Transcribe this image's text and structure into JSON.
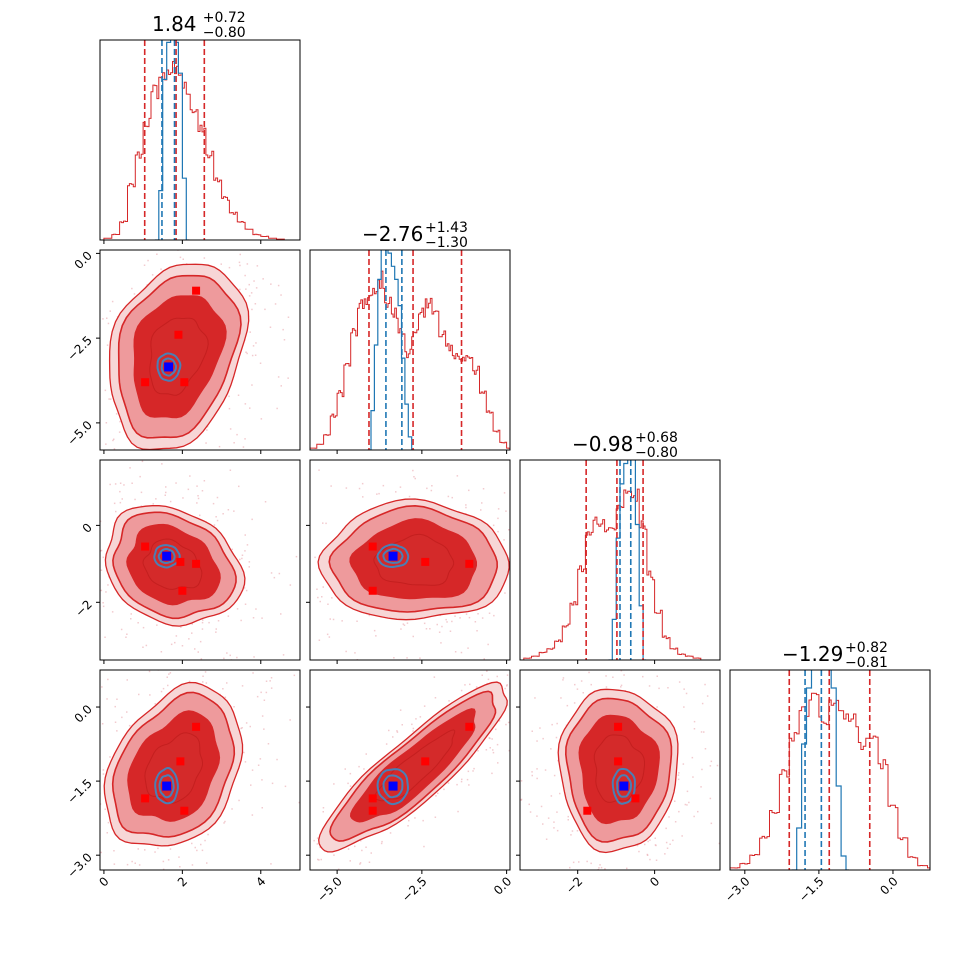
{
  "colors": {
    "red": "#d62728",
    "blue": "#1f77b4",
    "marker_red": "#ff0000",
    "marker_blue": "#0000ff",
    "contour_blue": "#4a7fb5"
  },
  "chart_data": {
    "type": "corner",
    "parameters": [
      {
        "range": [
          -0.1,
          5.0
        ],
        "ticks": [
          0,
          2,
          4
        ],
        "tick_labels": [
          "0",
          "2",
          "4"
        ],
        "title": {
          "median": "1.84",
          "upper": "+0.72",
          "lower": "−0.80"
        },
        "quantiles_red": [
          1.04,
          1.84,
          2.56
        ],
        "quantiles_blue": [
          1.48,
          1.8
        ],
        "hist_red": [
          [
            0.0,
            0.01
          ],
          [
            0.2,
            0.03
          ],
          [
            0.4,
            0.1
          ],
          [
            0.6,
            0.3
          ],
          [
            0.8,
            0.47
          ],
          [
            1.0,
            0.65
          ],
          [
            1.2,
            0.82
          ],
          [
            1.4,
            0.9
          ],
          [
            1.6,
            0.94
          ],
          [
            1.8,
            0.92
          ],
          [
            2.0,
            0.84
          ],
          [
            2.2,
            0.72
          ],
          [
            2.4,
            0.6
          ],
          [
            2.6,
            0.47
          ],
          [
            2.8,
            0.33
          ],
          [
            3.0,
            0.23
          ],
          [
            3.2,
            0.15
          ],
          [
            3.4,
            0.1
          ],
          [
            3.6,
            0.06
          ],
          [
            3.8,
            0.03
          ],
          [
            4.0,
            0.02
          ],
          [
            4.2,
            0.01
          ],
          [
            4.4,
            0.005
          ],
          [
            4.6,
            0.0
          ]
        ],
        "hist_blue": [
          [
            1.3,
            0.0
          ],
          [
            1.4,
            0.4
          ],
          [
            1.5,
            1.3
          ],
          [
            1.6,
            1.6
          ],
          [
            1.7,
            1.7
          ],
          [
            1.8,
            1.6
          ],
          [
            1.9,
            1.35
          ],
          [
            2.0,
            0.5
          ],
          [
            2.1,
            0.0
          ]
        ]
      },
      {
        "range": [
          -5.8,
          0.1
        ],
        "ticks": [
          -5.0,
          -2.5,
          0.0
        ],
        "tick_labels": [
          "−5.0",
          "−2.5",
          "0.0"
        ],
        "title": {
          "median": "−2.76",
          "upper": "+1.43",
          "lower": "−1.30"
        },
        "quantiles_red": [
          -4.06,
          -2.76,
          -1.33
        ],
        "quantiles_blue": [
          -3.56,
          -3.09
        ],
        "hist_red": [
          [
            -5.8,
            0.01
          ],
          [
            -5.6,
            0.03
          ],
          [
            -5.4,
            0.08
          ],
          [
            -5.2,
            0.18
          ],
          [
            -5.0,
            0.3
          ],
          [
            -4.8,
            0.45
          ],
          [
            -4.6,
            0.62
          ],
          [
            -4.4,
            0.75
          ],
          [
            -4.2,
            0.8
          ],
          [
            -4.0,
            0.82
          ],
          [
            -3.8,
            0.9
          ],
          [
            -3.6,
            0.78
          ],
          [
            -3.4,
            0.72
          ],
          [
            -3.2,
            0.62
          ],
          [
            -3.0,
            0.52
          ],
          [
            -2.8,
            0.6
          ],
          [
            -2.6,
            0.72
          ],
          [
            -2.4,
            0.8
          ],
          [
            -2.2,
            0.72
          ],
          [
            -2.0,
            0.6
          ],
          [
            -1.8,
            0.55
          ],
          [
            -1.6,
            0.5
          ],
          [
            -1.4,
            0.48
          ],
          [
            -1.2,
            0.5
          ],
          [
            -1.0,
            0.42
          ],
          [
            -0.8,
            0.3
          ],
          [
            -0.6,
            0.2
          ],
          [
            -0.4,
            0.1
          ],
          [
            -0.2,
            0.04
          ],
          [
            0.0,
            0.01
          ]
        ],
        "hist_blue": [
          [
            -4.1,
            0.0
          ],
          [
            -4.0,
            0.3
          ],
          [
            -3.9,
            0.8
          ],
          [
            -3.8,
            1.3
          ],
          [
            -3.7,
            1.6
          ],
          [
            -3.6,
            1.6
          ],
          [
            -3.5,
            1.5
          ],
          [
            -3.4,
            1.4
          ],
          [
            -3.3,
            1.3
          ],
          [
            -3.2,
            1.1
          ],
          [
            -3.1,
            0.7
          ],
          [
            -3.0,
            0.35
          ],
          [
            -2.9,
            0.1
          ],
          [
            -2.8,
            0.0
          ]
        ]
      },
      {
        "range": [
          -3.5,
          1.7
        ],
        "ticks": [
          -2,
          0
        ],
        "tick_labels": [
          "−2",
          "0"
        ],
        "title": {
          "median": "−0.98",
          "upper": "+0.68",
          "lower": "−0.80"
        },
        "quantiles_red": [
          -1.78,
          -0.98,
          -0.3
        ],
        "quantiles_blue": [
          -0.9,
          -0.62
        ],
        "hist_red": [
          [
            -3.4,
            0.01
          ],
          [
            -3.2,
            0.02
          ],
          [
            -3.0,
            0.04
          ],
          [
            -2.8,
            0.06
          ],
          [
            -2.6,
            0.1
          ],
          [
            -2.4,
            0.18
          ],
          [
            -2.2,
            0.3
          ],
          [
            -2.0,
            0.48
          ],
          [
            -1.8,
            0.66
          ],
          [
            -1.6,
            0.74
          ],
          [
            -1.4,
            0.72
          ],
          [
            -1.2,
            0.7
          ],
          [
            -1.0,
            0.8
          ],
          [
            -0.8,
            0.9
          ],
          [
            -0.6,
            0.86
          ],
          [
            -0.4,
            0.7
          ],
          [
            -0.2,
            0.45
          ],
          [
            0.0,
            0.25
          ],
          [
            0.2,
            0.12
          ],
          [
            0.4,
            0.06
          ],
          [
            0.6,
            0.03
          ],
          [
            0.8,
            0.02
          ],
          [
            1.0,
            0.01
          ],
          [
            1.2,
            0.0
          ]
        ],
        "hist_blue": [
          [
            -1.2,
            0.0
          ],
          [
            -1.1,
            0.3
          ],
          [
            -1.0,
            0.9
          ],
          [
            -0.9,
            1.3
          ],
          [
            -0.8,
            1.45
          ],
          [
            -0.7,
            1.5
          ],
          [
            -0.6,
            1.55
          ],
          [
            -0.5,
            1.0
          ],
          [
            -0.4,
            0.4
          ],
          [
            -0.3,
            0.0
          ]
        ]
      },
      {
        "range": [
          -3.3,
          0.75
        ],
        "ticks": [
          -3.0,
          -1.5,
          0.0
        ],
        "tick_labels": [
          "−3.0",
          "−1.5",
          "0.0"
        ],
        "title": {
          "median": "−1.29",
          "upper": "+0.82",
          "lower": "−0.81"
        },
        "quantiles_red": [
          -2.1,
          -1.29,
          -0.47
        ],
        "quantiles_blue": [
          -1.78,
          -1.45
        ],
        "hist_red": [
          [
            -3.3,
            0.01
          ],
          [
            -3.1,
            0.03
          ],
          [
            -2.9,
            0.07
          ],
          [
            -2.7,
            0.15
          ],
          [
            -2.5,
            0.28
          ],
          [
            -2.3,
            0.45
          ],
          [
            -2.1,
            0.62
          ],
          [
            -1.9,
            0.75
          ],
          [
            -1.7,
            0.8
          ],
          [
            -1.5,
            0.72
          ],
          [
            -1.3,
            0.8
          ],
          [
            -1.1,
            0.75
          ],
          [
            -0.9,
            0.7
          ],
          [
            -0.7,
            0.6
          ],
          [
            -0.5,
            0.62
          ],
          [
            -0.3,
            0.5
          ],
          [
            -0.1,
            0.3
          ],
          [
            0.1,
            0.15
          ],
          [
            0.3,
            0.06
          ],
          [
            0.5,
            0.02
          ],
          [
            0.7,
            0.01
          ]
        ],
        "hist_blue": [
          [
            -2.05,
            0.0
          ],
          [
            -1.95,
            0.3
          ],
          [
            -1.85,
            0.9
          ],
          [
            -1.75,
            1.3
          ],
          [
            -1.65,
            1.45
          ],
          [
            -1.55,
            1.5
          ],
          [
            -1.45,
            1.45
          ],
          [
            -1.35,
            1.5
          ],
          [
            -1.25,
            1.3
          ],
          [
            -1.15,
            0.6
          ],
          [
            -1.05,
            0.1
          ],
          [
            -0.95,
            0.0
          ]
        ]
      }
    ],
    "pairs": [
      {
        "x_param": 0,
        "y_param": 1,
        "red_center": [
          1.85,
          -3.0
        ],
        "red_sx": 0.85,
        "red_sy": 1.35,
        "red_rho": 0.25,
        "blue_center": [
          1.65,
          -3.35
        ],
        "blue_sx": 0.18,
        "blue_sy": 0.25,
        "red_points": [
          [
            2.35,
            -1.1
          ],
          [
            1.9,
            -2.4
          ],
          [
            1.05,
            -3.8
          ],
          [
            2.05,
            -3.8
          ]
        ],
        "blue_point": [
          1.65,
          -3.35
        ]
      },
      {
        "x_param": 0,
        "y_param": 2,
        "red_center": [
          1.75,
          -1.05
        ],
        "red_sx": 0.85,
        "red_sy": 0.75,
        "red_rho": -0.2,
        "blue_center": [
          1.6,
          -0.8
        ],
        "blue_sx": 0.2,
        "blue_sy": 0.18,
        "red_points": [
          [
            1.05,
            -0.55
          ],
          [
            1.95,
            -0.95
          ],
          [
            2.35,
            -1.0
          ],
          [
            2.0,
            -1.7
          ]
        ],
        "blue_point": [
          1.6,
          -0.8
        ]
      },
      {
        "x_param": 1,
        "y_param": 2,
        "red_center": [
          -2.7,
          -0.95
        ],
        "red_sx": 1.35,
        "red_sy": 0.75,
        "red_rho": 0.0,
        "blue_center": [
          -3.35,
          -0.8
        ],
        "blue_sx": 0.28,
        "blue_sy": 0.18,
        "red_points": [
          [
            -3.95,
            -0.55
          ],
          [
            -2.4,
            -0.95
          ],
          [
            -1.1,
            -1.0
          ],
          [
            -3.95,
            -1.7
          ]
        ],
        "blue_point": [
          -3.35,
          -0.8
        ]
      },
      {
        "x_param": 0,
        "y_param": 3,
        "red_center": [
          1.8,
          -1.25
        ],
        "red_sx": 0.85,
        "red_sy": 0.8,
        "red_rho": 0.3,
        "blue_center": [
          1.6,
          -1.6
        ],
        "blue_sx": 0.18,
        "blue_sy": 0.22,
        "red_points": [
          [
            2.35,
            -0.4
          ],
          [
            1.95,
            -1.1
          ],
          [
            1.05,
            -1.85
          ],
          [
            2.05,
            -2.1
          ]
        ],
        "blue_point": [
          1.6,
          -1.6
        ]
      },
      {
        "x_param": 1,
        "y_param": 3,
        "red_center": [
          -2.7,
          -1.25
        ],
        "red_sx": 1.35,
        "red_sy": 0.82,
        "red_rho": 0.88,
        "blue_center": [
          -3.35,
          -1.6
        ],
        "blue_sx": 0.28,
        "blue_sy": 0.22,
        "red_points": [
          [
            -1.1,
            -0.4
          ],
          [
            -2.4,
            -1.1
          ],
          [
            -3.95,
            -1.85
          ],
          [
            -3.95,
            -2.1
          ]
        ],
        "blue_point": [
          -3.35,
          -1.6
        ]
      },
      {
        "x_param": 2,
        "y_param": 3,
        "red_center": [
          -0.95,
          -1.25
        ],
        "red_sx": 0.75,
        "red_sy": 0.8,
        "red_rho": 0.0,
        "blue_center": [
          -0.8,
          -1.6
        ],
        "blue_sx": 0.18,
        "blue_sy": 0.22,
        "red_points": [
          [
            -0.95,
            -0.4
          ],
          [
            -0.95,
            -1.1
          ],
          [
            -1.75,
            -2.1
          ],
          [
            -0.5,
            -1.85
          ]
        ],
        "blue_point": [
          -0.8,
          -1.6
        ]
      }
    ]
  }
}
